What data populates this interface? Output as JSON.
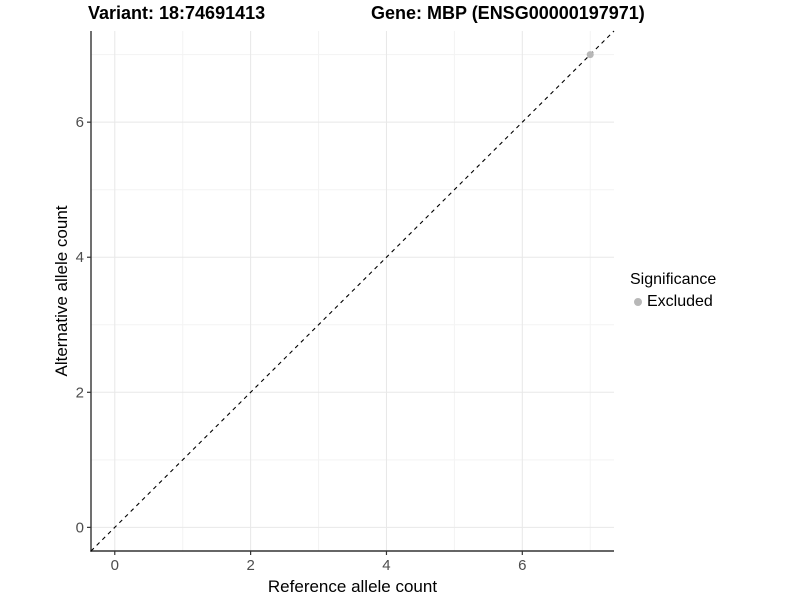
{
  "chart_data": {
    "type": "scatter",
    "title_left": "Variant: 18:74691413",
    "title_right": "Gene: MBP (ENSG00000197971)",
    "xlabel": "Reference allele count",
    "ylabel": "Alternative allele count",
    "xlim": [
      -0.35,
      7.35
    ],
    "ylim": [
      -0.35,
      7.35
    ],
    "x_major_ticks": [
      0,
      2,
      4,
      6
    ],
    "y_major_ticks": [
      0,
      2,
      4,
      6
    ],
    "x_minor_ticks": [
      1,
      3,
      5,
      7
    ],
    "y_minor_ticks": [
      1,
      3,
      5,
      7
    ],
    "grid": true,
    "points": [
      {
        "x": 7,
        "y": 7,
        "series": "Excluded"
      }
    ],
    "reference_line": {
      "slope": 1,
      "intercept": 0,
      "style": "dashed",
      "color": "#000000"
    },
    "legend": {
      "title": "Significance",
      "position": "right",
      "items": [
        {
          "label": "Excluded",
          "color": "#b8b8b8",
          "marker": "circle"
        }
      ]
    },
    "colors": {
      "background": "#ffffff",
      "axis_line": "#333333",
      "tick_label": "#4d4d4d",
      "grid_major": "#e8e8e8",
      "grid_minor": "#f3f3f3",
      "point": "#b8b8b8"
    }
  }
}
